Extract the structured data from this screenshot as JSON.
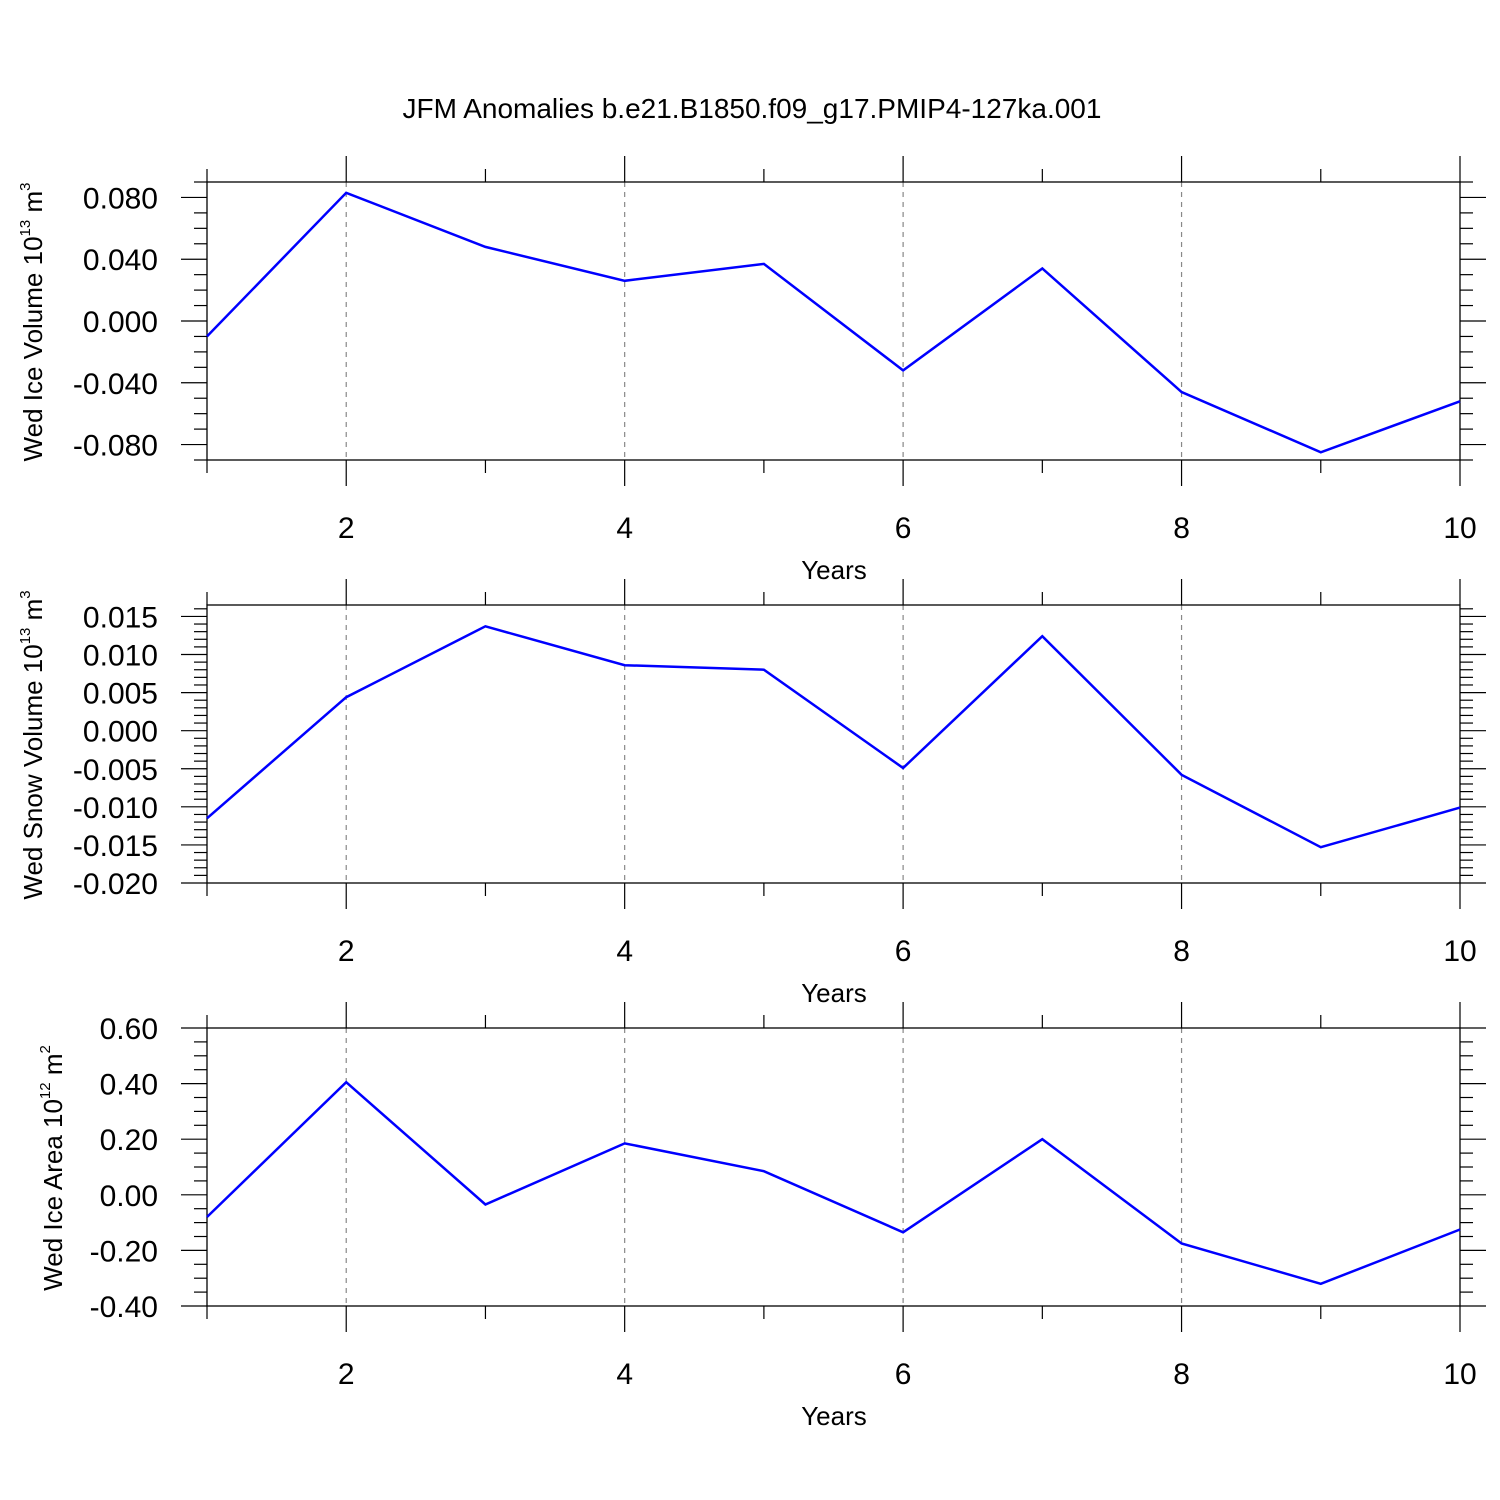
{
  "title": "JFM Anomalies b.e21.B1850.f09_g17.PMIP4-127ka.001",
  "colors": {
    "line": "#0000ff",
    "grid": "#888888",
    "axis": "#000000"
  },
  "chart_data": [
    {
      "type": "line",
      "ylabel_main": "Wed Ice Volume 10",
      "ylabel_exp": "13",
      "ylabel_unit": " m",
      "ylabel_unit_exp": "3",
      "xlabel": "Years",
      "xlim": [
        1,
        10
      ],
      "ylim": [
        -0.09,
        0.09
      ],
      "xticks": [
        2,
        4,
        6,
        8,
        10
      ],
      "xtick_labels": [
        "2",
        "4",
        "6",
        "8",
        "10"
      ],
      "yticks": [
        -0.08,
        -0.04,
        0,
        0.04,
        0.08
      ],
      "ytick_labels": [
        "-0.080",
        "-0.040",
        "0.000",
        "0.040",
        "0.080"
      ],
      "yminor_step": 0.01,
      "x": [
        1,
        2,
        3,
        4,
        5,
        6,
        7,
        8,
        9,
        10
      ],
      "values": [
        -0.01,
        0.083,
        0.048,
        0.026,
        0.037,
        -0.032,
        0.034,
        -0.046,
        -0.085,
        -0.052
      ]
    },
    {
      "type": "line",
      "ylabel_main": "Wed Snow Volume 10",
      "ylabel_exp": "13",
      "ylabel_unit": " m",
      "ylabel_unit_exp": "3",
      "xlabel": "Years",
      "xlim": [
        1,
        10
      ],
      "ylim": [
        -0.02,
        0.0165
      ],
      "xticks": [
        2,
        4,
        6,
        8,
        10
      ],
      "xtick_labels": [
        "2",
        "4",
        "6",
        "8",
        "10"
      ],
      "yticks": [
        -0.02,
        -0.015,
        -0.01,
        -0.005,
        0,
        0.005,
        0.01,
        0.015
      ],
      "ytick_labels": [
        "-0.020",
        "-0.015",
        "-0.010",
        "-0.005",
        "0.000",
        "0.005",
        "0.010",
        "0.015"
      ],
      "yminor_step": 0.001,
      "x": [
        1,
        2,
        3,
        4,
        5,
        6,
        7,
        8,
        9,
        10
      ],
      "values": [
        -0.0115,
        0.0044,
        0.0137,
        0.0086,
        0.008,
        -0.0049,
        0.0124,
        -0.0058,
        -0.0153,
        -0.0101
      ]
    },
    {
      "type": "line",
      "ylabel_main": "Wed Ice Area 10",
      "ylabel_exp": "12",
      "ylabel_unit": " m",
      "ylabel_unit_exp": "2",
      "xlabel": "Years",
      "xlim": [
        1,
        10
      ],
      "ylim": [
        -0.4,
        0.6
      ],
      "xticks": [
        2,
        4,
        6,
        8,
        10
      ],
      "xtick_labels": [
        "2",
        "4",
        "6",
        "8",
        "10"
      ],
      "yticks": [
        -0.4,
        -0.2,
        0,
        0.2,
        0.4,
        0.6
      ],
      "ytick_labels": [
        "-0.40",
        "-0.20",
        "0.00",
        "0.20",
        "0.40",
        "0.60"
      ],
      "yminor_step": 0.05,
      "x": [
        1,
        2,
        3,
        4,
        5,
        6,
        7,
        8,
        9,
        10
      ],
      "values": [
        -0.08,
        0.405,
        -0.035,
        0.185,
        0.085,
        -0.135,
        0.2,
        -0.175,
        -0.32,
        -0.125
      ]
    }
  ]
}
